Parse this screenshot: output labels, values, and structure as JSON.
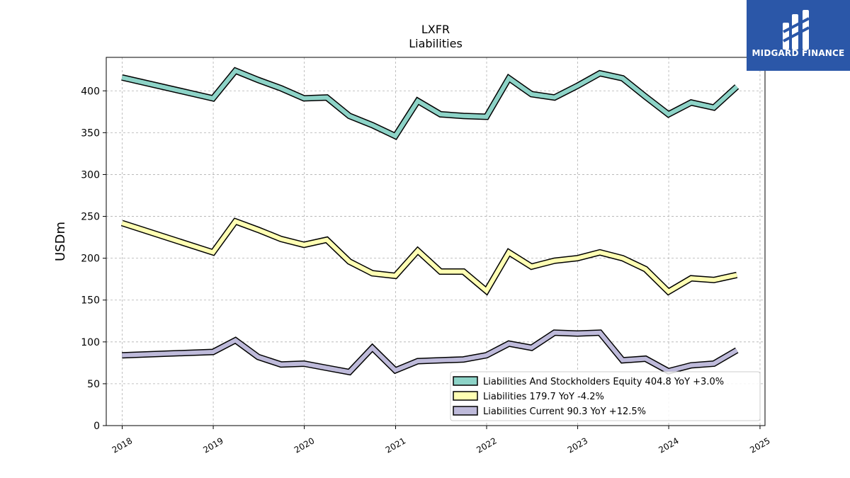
{
  "title": "LXFR",
  "subtitle": "Liabilities",
  "brand": {
    "name": "MIDGARD FINANCE",
    "bg_color": "#2B57A8"
  },
  "chart_data": {
    "type": "line",
    "ylabel": "USDm",
    "xlabel": "",
    "ylim": [
      0,
      440
    ],
    "yticks": [
      0,
      50,
      100,
      150,
      200,
      250,
      300,
      350,
      400
    ],
    "xticks": [
      "2018",
      "2019",
      "2020",
      "2021",
      "2022",
      "2023",
      "2024",
      "2025"
    ],
    "grid": true,
    "legend_position": "lower-right",
    "x": [
      "2017-12-31",
      "2018-12-31",
      "2019-03-31",
      "2019-06-30",
      "2019-09-30",
      "2019-12-31",
      "2020-03-31",
      "2020-06-30",
      "2020-09-30",
      "2020-12-31",
      "2021-03-31",
      "2021-06-30",
      "2021-09-30",
      "2021-12-31",
      "2022-03-31",
      "2022-06-30",
      "2022-09-30",
      "2022-12-31",
      "2023-03-31",
      "2023-06-30",
      "2023-09-30",
      "2023-12-31",
      "2024-03-31",
      "2024-06-30",
      "2024-09-30"
    ],
    "series": [
      {
        "name": "Liabilities And Stockholders Equity",
        "label": "Liabilities And Stockholders Equity  404.8 YoY +3.0%",
        "color": "#8DD3C7",
        "values": [
          416,
          391,
          424,
          413,
          403,
          391,
          392,
          370,
          359,
          346,
          388,
          372,
          370,
          369,
          415,
          396,
          392,
          406,
          421,
          415,
          393,
          372,
          386,
          380,
          405
        ]
      },
      {
        "name": "Liabilities",
        "label": "Liabilities  179.7 YoY -4.2%",
        "color": "#FFFFB3",
        "values": [
          242,
          207,
          244,
          234,
          223,
          216,
          222,
          196,
          182,
          179,
          209,
          184,
          184,
          161,
          207,
          190,
          197,
          200,
          207,
          200,
          187,
          160,
          176,
          174,
          180
        ]
      },
      {
        "name": "Liabilities Current",
        "label": "Liabilities Current  90.3 YoY +12.5%",
        "color": "#BEBADA",
        "values": [
          84,
          88,
          102,
          82,
          73,
          74,
          69,
          64,
          93,
          66,
          77,
          78,
          79,
          84,
          98,
          93,
          111,
          110,
          111,
          78,
          80,
          65,
          72,
          74,
          90
        ]
      }
    ]
  }
}
